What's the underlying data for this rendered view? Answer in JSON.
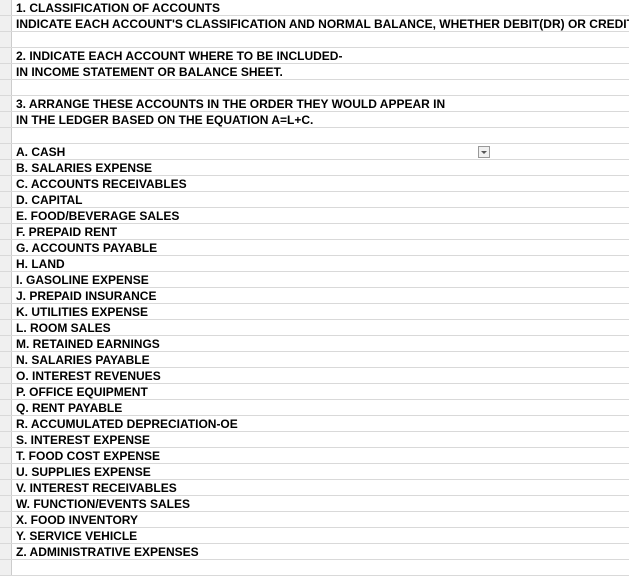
{
  "background_color": "#ffffff",
  "gutter_color": "#f0f0f0",
  "grid_color": "#d9d9d9",
  "text_color": "#000000",
  "font_size": 12,
  "font_weight": "bold",
  "font_family": "Arial",
  "rows": [
    {
      "text": "1.  CLASSIFICATION OF ACCOUNTS",
      "dropdown": false
    },
    {
      "text": "INDICATE EACH ACCOUNT'S CLASSIFICATION AND NORMAL BALANCE, WHETHER DEBIT(DR) OR CREDIT(CR)",
      "dropdown": false
    },
    {
      "text": "",
      "dropdown": false
    },
    {
      "text": "2. INDICATE EACH ACCOUNT WHERE TO BE  INCLUDED-",
      "dropdown": false
    },
    {
      "text": "          IN INCOME STATEMENT OR BALANCE SHEET.",
      "dropdown": false
    },
    {
      "text": "",
      "dropdown": false
    },
    {
      "text": "3.  ARRANGE THESE ACCOUNTS IN THE ORDER THEY WOULD APPEAR IN",
      "dropdown": false
    },
    {
      "text": "    IN THE LEDGER BASED ON THE EQUATION A=L+C.",
      "dropdown": false
    },
    {
      "text": "",
      "dropdown": false
    },
    {
      "text": "A.  CASH",
      "dropdown": true
    },
    {
      "text": "B.  SALARIES EXPENSE",
      "dropdown": false
    },
    {
      "text": "C.  ACCOUNTS RECEIVABLES",
      "dropdown": false
    },
    {
      "text": "D.  CAPITAL",
      "dropdown": false
    },
    {
      "text": "E.  FOOD/BEVERAGE SALES",
      "dropdown": false
    },
    {
      "text": "F.  PREPAID RENT",
      "dropdown": false
    },
    {
      "text": "G.  ACCOUNTS PAYABLE",
      "dropdown": false
    },
    {
      "text": "H.  LAND",
      "dropdown": false
    },
    {
      "text": "I.  GASOLINE EXPENSE",
      "dropdown": false
    },
    {
      "text": "J.  PREPAID INSURANCE",
      "dropdown": false
    },
    {
      "text": "K.  UTILITIES EXPENSE",
      "dropdown": false
    },
    {
      "text": "L.  ROOM SALES",
      "dropdown": false
    },
    {
      "text": "M.  RETAINED EARNINGS",
      "dropdown": false
    },
    {
      "text": "N.  SALARIES PAYABLE",
      "dropdown": false
    },
    {
      "text": "O.  INTEREST REVENUES",
      "dropdown": false
    },
    {
      "text": "P.  OFFICE EQUIPMENT",
      "dropdown": false
    },
    {
      "text": "Q.  RENT PAYABLE",
      "dropdown": false
    },
    {
      "text": "R.  ACCUMULATED DEPRECIATION-OE",
      "dropdown": false
    },
    {
      "text": "S.  INTEREST EXPENSE",
      "dropdown": false
    },
    {
      "text": "T.  FOOD COST EXPENSE",
      "dropdown": false
    },
    {
      "text": "U.  SUPPLIES EXPENSE",
      "dropdown": false
    },
    {
      "text": "V.  INTEREST RECEIVABLES",
      "dropdown": false
    },
    {
      "text": "W.  FUNCTION/EVENTS SALES",
      "dropdown": false
    },
    {
      "text": "X.  FOOD INVENTORY",
      "dropdown": false
    },
    {
      "text": "Y.  SERVICE VEHICLE",
      "dropdown": false
    },
    {
      "text": "Z.  ADMINISTRATIVE EXPENSES",
      "dropdown": false
    },
    {
      "text": "",
      "dropdown": false
    }
  ]
}
